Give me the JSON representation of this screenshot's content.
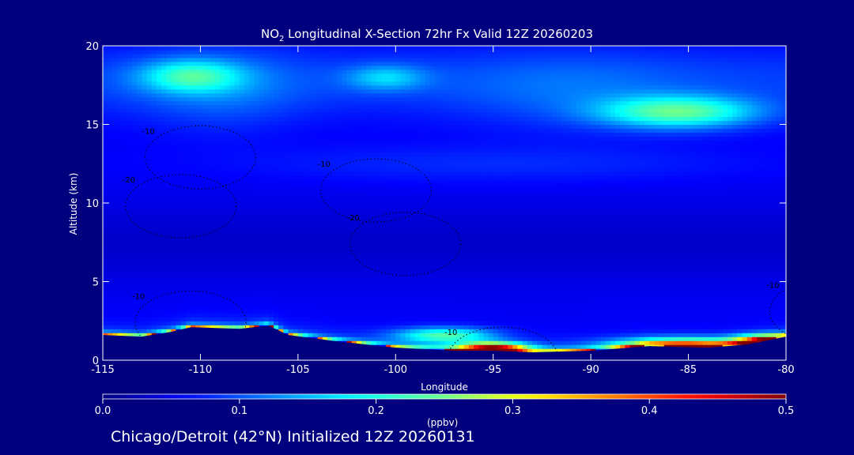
{
  "title": {
    "species": "NO",
    "subscript": "2",
    "text": " Longitudinal X-Section 72hr  Fx Valid 12Z 20260203"
  },
  "footer": "Chicago/Detroit (42°N) Initialized 12Z 20260131",
  "colorbar": {
    "units": "(ppbv)",
    "ticks": [
      "0.0",
      "0.1",
      "0.2",
      "0.3",
      "0.4",
      "0.5"
    ],
    "range": [
      0.0,
      0.5
    ]
  },
  "colors": {
    "background": "#00007f",
    "axis": "#ffffff"
  },
  "chart_data": {
    "type": "heatmap",
    "title": "NO2 Longitudinal X-Section 72hr  Fx Valid 12Z 20260203",
    "xlabel": "Longitude",
    "ylabel": "Altitude (km)",
    "xlim": [
      -115,
      -80
    ],
    "ylim": [
      0,
      20
    ],
    "xticks": [
      -115,
      -110,
      -105,
      -100,
      -95,
      -90,
      -85,
      -80
    ],
    "xtick_labels": [
      "-115",
      "-110",
      "-105",
      "-100",
      "-95",
      "-90",
      "-85",
      "-80"
    ],
    "yticks": [
      0,
      5,
      10,
      15,
      20
    ],
    "ytick_labels": [
      "0",
      "5",
      "10",
      "15",
      "20"
    ],
    "colormap": "jet",
    "value_range": [
      0.0,
      0.5
    ],
    "units": "ppbv",
    "terrain_km": {
      "lon": [
        -115,
        -113,
        -111.5,
        -110.5,
        -108,
        -106.5,
        -105.5,
        -103,
        -100,
        -97,
        -95,
        -93,
        -90,
        -87,
        -84,
        -82,
        -80
      ],
      "alt": [
        1.6,
        1.5,
        1.8,
        2.1,
        2.0,
        2.2,
        1.6,
        1.2,
        0.8,
        0.6,
        0.6,
        0.5,
        0.6,
        0.9,
        0.8,
        1.0,
        1.5
      ]
    },
    "contours": {
      "style": "dotted",
      "labels": [
        {
          "text": "-10",
          "lon": -113,
          "alt": 14.4
        },
        {
          "text": "-10",
          "lon": -104,
          "alt": 12.3
        },
        {
          "text": "-20",
          "lon": -114,
          "alt": 11.3
        },
        {
          "text": "-20",
          "lon": -102.5,
          "alt": 8.9
        },
        {
          "text": "-10",
          "lon": -113.5,
          "alt": 3.9
        },
        {
          "text": "-10",
          "lon": -97.5,
          "alt": 1.6
        },
        {
          "text": "-10",
          "lon": -81,
          "alt": 4.6
        }
      ]
    },
    "blobs": [
      {
        "lon": -97.5,
        "alt": 1.6,
        "rlon": 2.5,
        "ralt": 0.5,
        "v": 0.17
      },
      {
        "lon": -95,
        "alt": 0.8,
        "rlon": 1.8,
        "ralt": 0.35,
        "v": 0.38
      },
      {
        "lon": -85,
        "alt": 0.9,
        "rlon": 3.5,
        "ralt": 0.5,
        "v": 0.33
      },
      {
        "lon": -81,
        "alt": 1.2,
        "rlon": 1.5,
        "ralt": 0.45,
        "v": 0.36
      },
      {
        "lon": -110.5,
        "alt": 18.1,
        "rlon": 2.5,
        "ralt": 1.0,
        "v": 0.12
      },
      {
        "lon": -100.5,
        "alt": 18.0,
        "rlon": 2.0,
        "ralt": 0.8,
        "v": 0.08
      },
      {
        "lon": -85.5,
        "alt": 15.8,
        "rlon": 4.0,
        "ralt": 1.0,
        "v": 0.17
      },
      {
        "lon": -91,
        "alt": 17.0,
        "rlon": 6.0,
        "ralt": 2.5,
        "v": 0.03
      },
      {
        "lon": -109,
        "alt": 17.2,
        "rlon": 4.0,
        "ralt": 2.5,
        "v": 0.04
      }
    ]
  }
}
